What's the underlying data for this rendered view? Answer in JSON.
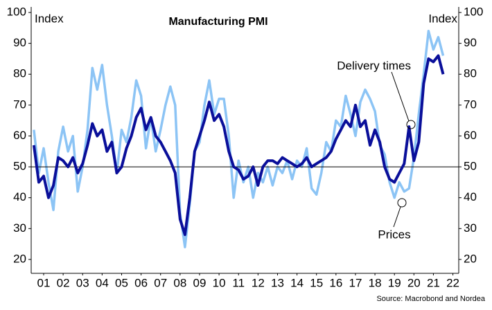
{
  "chart_data": {
    "type": "line",
    "title": "Manufacturing PMI",
    "y_label": "Index",
    "y2_label": "Index",
    "source": "Source: Macrobond and Nordea",
    "annotations": [
      "Delivery times",
      "Prices"
    ],
    "x": [
      2001.0,
      2001.25,
      2001.5,
      2001.75,
      2002.0,
      2002.25,
      2002.5,
      2002.75,
      2003.0,
      2003.25,
      2003.5,
      2003.75,
      2004.0,
      2004.25,
      2004.5,
      2004.75,
      2005.0,
      2005.25,
      2005.5,
      2005.75,
      2006.0,
      2006.25,
      2006.5,
      2006.75,
      2007.0,
      2007.25,
      2007.5,
      2007.75,
      2008.0,
      2008.25,
      2008.5,
      2008.75,
      2009.0,
      2009.25,
      2009.5,
      2009.75,
      2010.0,
      2010.25,
      2010.5,
      2010.75,
      2011.0,
      2011.25,
      2011.5,
      2011.75,
      2012.0,
      2012.25,
      2012.5,
      2012.75,
      2013.0,
      2013.25,
      2013.5,
      2013.75,
      2014.0,
      2014.25,
      2014.5,
      2014.75,
      2015.0,
      2015.25,
      2015.5,
      2015.75,
      2016.0,
      2016.25,
      2016.5,
      2016.75,
      2017.0,
      2017.25,
      2017.5,
      2017.75,
      2018.0,
      2018.25,
      2018.5,
      2018.75,
      2019.0,
      2019.25,
      2019.5,
      2019.75,
      2020.0,
      2020.25,
      2020.5,
      2020.75,
      2021.0,
      2021.25,
      2021.5,
      2021.75,
      2022.0
    ],
    "series": [
      {
        "name": "Prices",
        "color": "#8cc4f5",
        "values": [
          62,
          48,
          56,
          45,
          36,
          55,
          63,
          55,
          60,
          42,
          50,
          62,
          82,
          75,
          83,
          70,
          60,
          48,
          62,
          58,
          66,
          78,
          73,
          56,
          66,
          55,
          62,
          70,
          76,
          70,
          35,
          24,
          38,
          55,
          58,
          70,
          78,
          67,
          72,
          72,
          60,
          40,
          52,
          45,
          50,
          40,
          48,
          45,
          50,
          44,
          50,
          48,
          52,
          46,
          52,
          50,
          56,
          43,
          41,
          48,
          58,
          55,
          65,
          63,
          73,
          67,
          60,
          71,
          75,
          72,
          68,
          57,
          54,
          45,
          40,
          45,
          42,
          43,
          53,
          67,
          80,
          94,
          88,
          92,
          86
        ]
      },
      {
        "name": "Delivery times",
        "color": "#0a0f9a",
        "values": [
          57,
          45,
          47,
          40,
          44,
          53,
          52,
          50,
          53,
          48,
          51,
          57,
          64,
          60,
          62,
          55,
          58,
          48,
          50,
          56,
          60,
          66,
          69,
          62,
          66,
          60,
          58,
          55,
          52,
          48,
          33,
          28,
          40,
          55,
          60,
          65,
          71,
          65,
          67,
          63,
          55,
          50,
          49,
          46,
          47,
          50,
          44,
          50,
          52,
          52,
          51,
          53,
          52,
          51,
          50,
          51,
          53,
          50,
          51,
          52,
          53,
          55,
          59,
          62,
          65,
          63,
          70,
          63,
          65,
          57,
          62,
          58,
          50,
          46,
          45,
          48,
          51,
          63,
          52,
          58,
          77,
          85,
          84,
          86,
          80
        ]
      }
    ],
    "reference_line": 50,
    "xlim": [
      2000.86,
      2022.8
    ],
    "xticks": [
      {
        "value": 2001.5,
        "label": "01"
      },
      {
        "value": 2002.5,
        "label": "02"
      },
      {
        "value": 2003.5,
        "label": "03"
      },
      {
        "value": 2004.5,
        "label": "04"
      },
      {
        "value": 2005.5,
        "label": "05"
      },
      {
        "value": 2006.5,
        "label": "06"
      },
      {
        "value": 2007.5,
        "label": "07"
      },
      {
        "value": 2008.5,
        "label": "08"
      },
      {
        "value": 2009.5,
        "label": "09"
      },
      {
        "value": 2010.5,
        "label": "10"
      },
      {
        "value": 2011.5,
        "label": "11"
      },
      {
        "value": 2012.5,
        "label": "12"
      },
      {
        "value": 2013.5,
        "label": "13"
      },
      {
        "value": 2014.5,
        "label": "14"
      },
      {
        "value": 2015.5,
        "label": "15"
      },
      {
        "value": 2016.5,
        "label": "16"
      },
      {
        "value": 2017.5,
        "label": "17"
      },
      {
        "value": 2018.5,
        "label": "18"
      },
      {
        "value": 2019.5,
        "label": "19"
      },
      {
        "value": 2020.5,
        "label": "20"
      },
      {
        "value": 2021.5,
        "label": "21"
      },
      {
        "value": 2022.5,
        "label": "22"
      }
    ],
    "ylim": [
      15.5,
      101.8
    ],
    "yticks": [
      20,
      30,
      40,
      50,
      60,
      70,
      80,
      90,
      100
    ],
    "y2lim": [
      15.5,
      101.8
    ],
    "y2ticks": [
      20,
      30,
      40,
      50,
      60,
      70,
      80,
      90,
      100
    ]
  }
}
